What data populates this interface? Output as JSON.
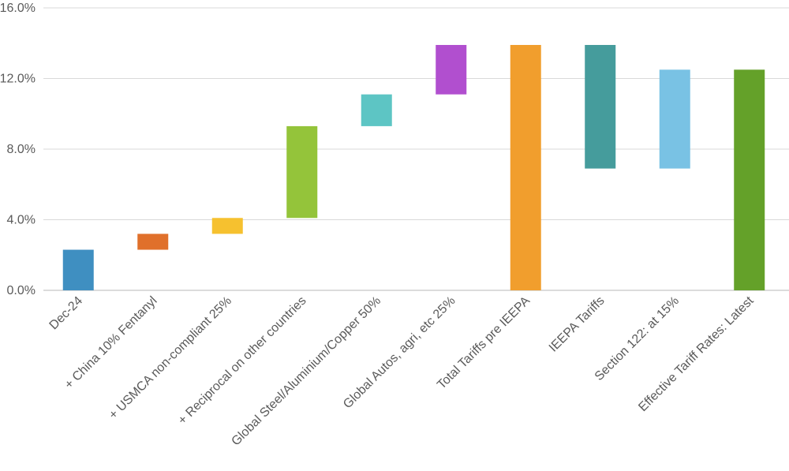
{
  "chart_data": {
    "type": "bar",
    "subtype": "waterfall",
    "title": "",
    "xlabel": "",
    "ylabel": "",
    "ylim": [
      0,
      16
    ],
    "y_ticks": [
      0,
      4,
      8,
      12,
      16
    ],
    "y_tick_labels": [
      "0.0%",
      "4.0%",
      "8.0%",
      "12.0%",
      "16.0%"
    ],
    "grid": true,
    "legend": "none",
    "categories": [
      "Dec-24",
      "+ China 10% Fentanyl",
      "+ USMCA non-compliant 25%",
      "+ Reciprocal on other countries",
      "Global Steel/Aluminium/Copper 50%",
      "Global Autos, agri, etc 25%",
      "Total Tariffs pre IEEPA",
      "IEEPA Tariffs",
      "Section 122: at 15%",
      "Effective Tariff Rates: Latest"
    ],
    "bars": [
      {
        "bottom": 0.0,
        "top": 2.3,
        "color": "#3f8fc1"
      },
      {
        "bottom": 2.3,
        "top": 3.2,
        "color": "#e0702b"
      },
      {
        "bottom": 3.2,
        "top": 4.1,
        "color": "#f6c12f"
      },
      {
        "bottom": 4.1,
        "top": 9.3,
        "color": "#94c43a"
      },
      {
        "bottom": 9.3,
        "top": 11.1,
        "color": "#5dc5c4"
      },
      {
        "bottom": 11.1,
        "top": 13.9,
        "color": "#b14fcf"
      },
      {
        "bottom": 0.0,
        "top": 13.9,
        "color": "#f19e2d"
      },
      {
        "bottom": 6.9,
        "top": 13.9,
        "color": "#459c9c"
      },
      {
        "bottom": 6.9,
        "top": 12.5,
        "color": "#79c2e4"
      },
      {
        "bottom": 0.0,
        "top": 12.5,
        "color": "#64a129"
      }
    ]
  }
}
